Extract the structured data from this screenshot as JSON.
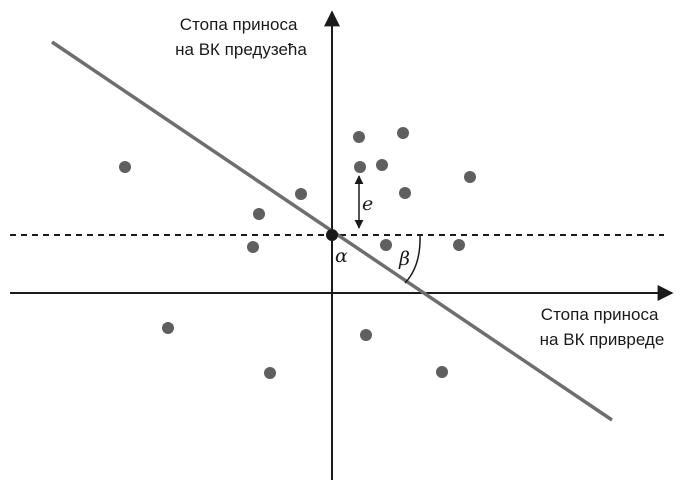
{
  "y_axis_label": [
    "Стопа приноса",
    "на ВК предузећа"
  ],
  "x_axis_label": [
    "Стопа приноса",
    "на ВК привреде"
  ],
  "symbols": {
    "error": "e",
    "intercept": "α",
    "slope": "β"
  },
  "colors": {
    "axis": "#1a1a1a",
    "regression_line": "#6e6e6e",
    "points": "#5f5f5f",
    "intercept_point": "#1a1a1a"
  }
}
